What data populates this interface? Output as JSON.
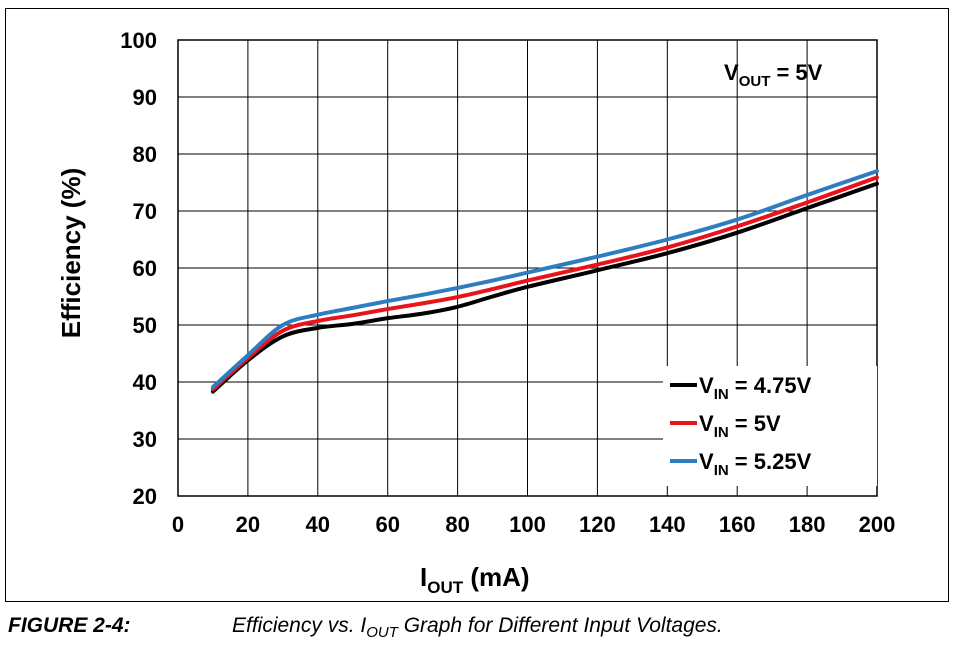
{
  "chart_data": {
    "type": "line",
    "annotation": {
      "main": "V",
      "sub": "OUT",
      "rest": " = 5V"
    },
    "xlabel": {
      "main": "I",
      "sub": "OUT",
      "rest": " (mA)"
    },
    "ylabel": "Efficiency (%)",
    "xlim": [
      0,
      200
    ],
    "ylim": [
      20,
      100
    ],
    "x_ticks": [
      "0",
      "20",
      "40",
      "60",
      "80",
      "100",
      "120",
      "140",
      "160",
      "180",
      "200"
    ],
    "y_ticks": [
      "20",
      "30",
      "40",
      "50",
      "60",
      "70",
      "80",
      "90",
      "100"
    ],
    "grid": true,
    "legend_position": "bottom-right",
    "series": [
      {
        "name": "VIN = 4.75V",
        "label_main": "V",
        "label_sub": "IN",
        "label_rest": " = 4.75V",
        "color": "#000000",
        "x": [
          10,
          20,
          30,
          40,
          50,
          60,
          70,
          80,
          90,
          100,
          120,
          140,
          160,
          180,
          200
        ],
        "y": [
          38.3,
          43.8,
          48.0,
          49.5,
          50.2,
          51.2,
          52.0,
          53.2,
          55.0,
          56.7,
          59.6,
          62.6,
          66.2,
          70.5,
          74.8
        ]
      },
      {
        "name": "VIN = 5V",
        "label_main": "V",
        "label_sub": "IN",
        "label_rest": " = 5V",
        "color": "#e8141c",
        "x": [
          10,
          20,
          30,
          40,
          50,
          60,
          70,
          80,
          90,
          100,
          120,
          140,
          160,
          180,
          200
        ],
        "y": [
          38.7,
          44.2,
          49.0,
          50.7,
          51.7,
          52.8,
          53.8,
          54.9,
          56.3,
          57.8,
          60.6,
          63.6,
          67.3,
          71.5,
          75.9
        ]
      },
      {
        "name": "VIN = 5.25V",
        "label_main": "V",
        "label_sub": "IN",
        "label_rest": " = 5.25V",
        "color": "#2e7dc0",
        "x": [
          10,
          20,
          30,
          40,
          50,
          60,
          70,
          80,
          90,
          100,
          120,
          140,
          160,
          180,
          200
        ],
        "y": [
          39.1,
          44.7,
          50.0,
          51.8,
          53.0,
          54.2,
          55.3,
          56.5,
          57.8,
          59.2,
          62.0,
          65.0,
          68.5,
          72.8,
          77.0
        ]
      }
    ]
  },
  "caption": {
    "label": "FIGURE 2-4:",
    "text_main": "Efficiency vs. I",
    "text_sub": "OUT",
    "text_rest": " Graph for Different Input Voltages."
  }
}
